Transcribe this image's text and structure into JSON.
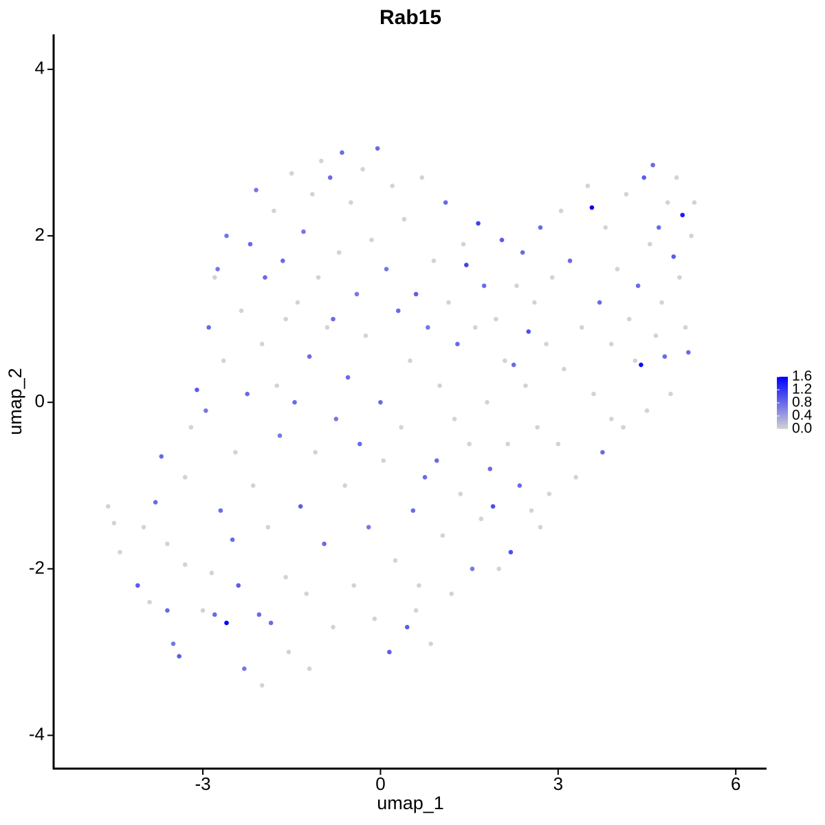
{
  "chart_data": {
    "type": "scatter",
    "title": "Rab15",
    "xlabel": "umap_1",
    "ylabel": "umap_2",
    "xlim": [
      -5.52,
      6.52
    ],
    "ylim": [
      -4.4,
      4.42
    ],
    "xticks": [
      -3,
      0,
      3,
      6
    ],
    "yticks": [
      -4,
      -2,
      0,
      2,
      4
    ],
    "low_color": "#d3d3d3",
    "high_color": "#0000ff",
    "colorlim": [
      0,
      1.6
    ],
    "colorticks": [
      {
        "value": 0,
        "label": "0.0"
      },
      0.4,
      0.8,
      1.2,
      1.6
    ],
    "x": [
      -4.6,
      -4.5,
      -4.4,
      -4.1,
      -4.0,
      -3.8,
      -3.7,
      -3.6,
      -3.5,
      -3.4,
      -3.3,
      -3.2,
      -3.1,
      -3.0,
      -2.95,
      -2.9,
      -2.85,
      -2.8,
      -2.8,
      -2.75,
      -2.7,
      -2.65,
      -2.6,
      -2.6,
      -2.5,
      -2.45,
      -2.4,
      -2.35,
      -2.3,
      -2.25,
      -2.2,
      -2.15,
      -2.1,
      -2.05,
      -2.0,
      -1.95,
      -1.9,
      -1.85,
      -1.8,
      -1.75,
      -1.7,
      -1.65,
      -1.6,
      -1.55,
      -1.5,
      -1.45,
      -1.4,
      -1.35,
      -1.3,
      -1.25,
      -1.2,
      -1.15,
      -1.1,
      -1.05,
      -1.0,
      -0.95,
      -0.9,
      -0.85,
      -0.8,
      -0.75,
      -0.7,
      -0.65,
      -0.6,
      -0.55,
      -0.5,
      -0.45,
      -0.4,
      -0.35,
      -0.3,
      -0.25,
      -0.2,
      -0.15,
      -0.1,
      -0.05,
      0.0,
      0.05,
      0.1,
      0.15,
      0.2,
      0.25,
      0.3,
      0.35,
      0.4,
      0.45,
      0.5,
      0.55,
      0.6,
      0.65,
      0.7,
      0.75,
      0.8,
      0.85,
      0.9,
      0.95,
      1.0,
      1.05,
      1.1,
      1.15,
      1.2,
      1.25,
      1.3,
      1.35,
      1.4,
      1.45,
      1.5,
      1.55,
      1.6,
      1.65,
      1.7,
      1.75,
      1.8,
      1.85,
      1.9,
      1.95,
      2.0,
      2.05,
      2.1,
      2.15,
      2.2,
      2.25,
      2.3,
      2.35,
      2.4,
      2.45,
      2.5,
      2.55,
      2.6,
      2.65,
      2.7,
      2.8,
      2.85,
      2.9,
      3.0,
      3.05,
      3.1,
      3.2,
      3.3,
      3.4,
      3.5,
      3.57,
      3.6,
      3.7,
      3.75,
      3.8,
      3.9,
      4.0,
      4.1,
      4.15,
      4.2,
      4.3,
      4.35,
      4.4,
      4.45,
      4.5,
      4.55,
      4.6,
      4.65,
      4.7,
      4.75,
      4.8,
      4.85,
      4.9,
      4.95,
      5.0,
      5.05,
      5.1,
      5.15,
      5.2,
      5.25,
      5.3,
      -3.9,
      -3.3,
      -2.0,
      -1.2,
      0.6,
      -0.8,
      -1.6,
      2.7,
      3.9,
      -3.6
    ],
    "values": [
      -1.25,
      -1.45,
      -1.8,
      -2.2,
      -1.5,
      -1.2,
      -0.65,
      -1.7,
      -2.9,
      -3.05,
      -1.95,
      -0.3,
      0.15,
      -2.5,
      -0.1,
      0.9,
      -2.05,
      -2.55,
      1.5,
      1.6,
      -1.3,
      0.5,
      -2.65,
      2.0,
      -1.65,
      -0.6,
      -2.2,
      1.1,
      -3.2,
      0.1,
      1.9,
      -1.0,
      2.55,
      -2.55,
      0.7,
      1.5,
      -1.5,
      -2.65,
      2.3,
      0.2,
      -0.4,
      1.7,
      -2.1,
      -3.0,
      2.75,
      0.0,
      1.2,
      -1.25,
      2.05,
      -2.3,
      0.55,
      2.5,
      -0.6,
      1.5,
      2.9,
      -1.7,
      0.9,
      2.7,
      -2.7,
      -0.2,
      1.8,
      3.0,
      -1.0,
      0.3,
      2.4,
      -2.2,
      1.3,
      -0.5,
      2.8,
      0.8,
      -1.5,
      1.95,
      -2.6,
      3.05,
      0.0,
      -0.7,
      1.6,
      -3.0,
      2.6,
      -1.9,
      1.1,
      -0.3,
      2.2,
      -2.7,
      0.5,
      -1.3,
      1.3,
      -2.2,
      2.7,
      -0.9,
      0.9,
      -2.9,
      1.7,
      -0.7,
      0.2,
      -1.6,
      2.4,
      1.2,
      -2.3,
      -0.2,
      0.7,
      -1.1,
      1.9,
      1.65,
      -0.5,
      -2.0,
      0.9,
      2.15,
      -1.4,
      1.4,
      0.0,
      -0.8,
      -1.25,
      1.0,
      -2.0,
      1.95,
      0.5,
      -0.5,
      -1.8,
      0.45,
      1.4,
      -1.0,
      1.8,
      0.2,
      0.85,
      -1.3,
      1.2,
      -0.3,
      2.1,
      0.7,
      -1.1,
      1.5,
      -0.5,
      2.3,
      0.4,
      1.7,
      -0.9,
      0.9,
      2.6,
      2.34,
      0.1,
      1.2,
      -0.6,
      2.1,
      0.7,
      1.6,
      -0.3,
      2.5,
      1.0,
      0.5,
      1.4,
      0.45,
      2.7,
      -0.1,
      1.9,
      2.85,
      0.8,
      2.1,
      1.2,
      0.55,
      2.4,
      0.1,
      1.75,
      2.7,
      1.5,
      2.25,
      0.9,
      0.6,
      2.0,
      2.4,
      -2.4,
      -0.9,
      -3.4,
      -3.2,
      -2.5,
      1.0,
      1.0,
      -1.5,
      -0.2,
      -2.5
    ],
    "expression": [
      0,
      0,
      0,
      0.9,
      0,
      0.8,
      0.8,
      0,
      0.7,
      0.9,
      0,
      0,
      0.9,
      0,
      0.7,
      0.8,
      0,
      0.8,
      0,
      0.7,
      0.8,
      0,
      1.6,
      0.7,
      0.8,
      0,
      0.9,
      0,
      0.7,
      0.8,
      0.8,
      0,
      0.7,
      0.8,
      0,
      0.8,
      0,
      0.8,
      0,
      0,
      0.7,
      0.8,
      0,
      0,
      0,
      0.8,
      0,
      0.9,
      0.7,
      0,
      0.8,
      0,
      0,
      0,
      0,
      0.8,
      0,
      0.8,
      0,
      0.7,
      0,
      0.8,
      0,
      0.8,
      0,
      0,
      0.7,
      0.8,
      0,
      0,
      0.7,
      0,
      0,
      0.8,
      0.8,
      0,
      0.7,
      0.9,
      0,
      0,
      0.8,
      0,
      0,
      0.9,
      0,
      0.8,
      0.9,
      0,
      0,
      0.8,
      0.7,
      0,
      0,
      0.8,
      0,
      0,
      0.8,
      0,
      0,
      0,
      0.8,
      0,
      0,
      1.1,
      0,
      0.7,
      0,
      1.1,
      0,
      0.8,
      0,
      0.8,
      1.0,
      0,
      0,
      0.9,
      0,
      0,
      1.0,
      0.8,
      0,
      0.8,
      0.8,
      0,
      1.0,
      0,
      0,
      0,
      0.8,
      0,
      0,
      0,
      0,
      0,
      0,
      0.8,
      0,
      0,
      0,
      1.6,
      0,
      0.8,
      0.8,
      0,
      0,
      0,
      0,
      0,
      0,
      0,
      0.8,
      1.5,
      0.9,
      0,
      0,
      0.8,
      0,
      0.8,
      0,
      0.8,
      0,
      0,
      0.9,
      0,
      0,
      1.4,
      0,
      0.8,
      0,
      0,
      0,
      0,
      0,
      0,
      0,
      0.8,
      0,
      0,
      0,
      0.8
    ]
  }
}
